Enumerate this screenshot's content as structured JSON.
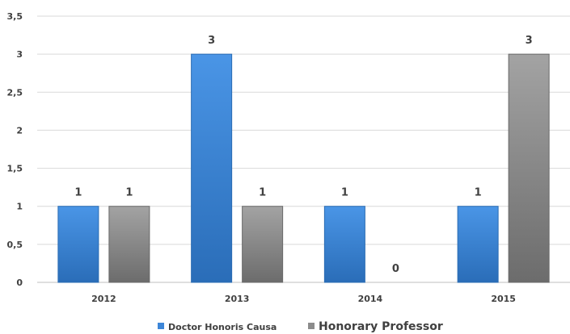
{
  "chart_data": {
    "type": "bar",
    "categories": [
      "2012",
      "2013",
      "2014",
      "2015"
    ],
    "series": [
      {
        "name": "Doctor Honoris Causa",
        "values": [
          1,
          3,
          1,
          1
        ],
        "color": "#3d86d8"
      },
      {
        "name": "Honorary Professor",
        "values": [
          1,
          1,
          0,
          3
        ],
        "color": "#8c8c8c"
      }
    ],
    "ylim": [
      0,
      3.5
    ],
    "yticks": [
      "0",
      "0,5",
      "1",
      "1,5",
      "2",
      "2,5",
      "3",
      "3,5"
    ],
    "data_labels": true,
    "grid": true,
    "legend": "bottom",
    "title": "",
    "xlabel": "",
    "ylabel": ""
  }
}
